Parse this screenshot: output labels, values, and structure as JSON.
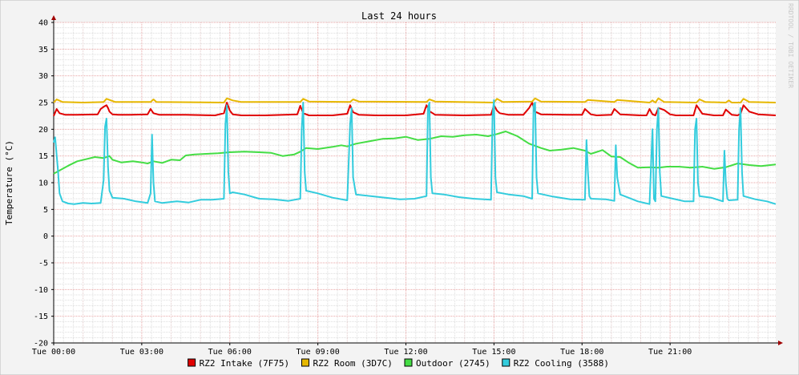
{
  "chart_data": {
    "type": "line",
    "title": "Last 24 hours",
    "ylabel": "Temperature (°C)",
    "watermark": "RRDTOOL / TOBI OETIKER",
    "xlim": [
      0,
      24.6
    ],
    "ylim": [
      -20,
      40
    ],
    "y_ticks": [
      -20,
      -15,
      -10,
      -5,
      0,
      5,
      10,
      15,
      20,
      25,
      30,
      35,
      40
    ],
    "x_ticks": [
      {
        "value": 0,
        "label": "Tue 00:00"
      },
      {
        "value": 3,
        "label": "Tue 03:00"
      },
      {
        "value": 6,
        "label": "Tue 06:00"
      },
      {
        "value": 9,
        "label": "Tue 09:00"
      },
      {
        "value": 12,
        "label": "Tue 12:00"
      },
      {
        "value": 15,
        "label": "Tue 15:00"
      },
      {
        "value": 18,
        "label": "Tue 18:00"
      },
      {
        "value": 21,
        "label": "Tue 21:00"
      }
    ],
    "grid": true,
    "legend_position": "bottom",
    "series": [
      {
        "name": "RZ2 Intake (7F75)",
        "color": "#e00000",
        "x": [
          0,
          0.1,
          0.2,
          0.4,
          0.8,
          1.5,
          1.6,
          1.7,
          1.8,
          1.85,
          1.9,
          2.0,
          2.2,
          2.6,
          3.2,
          3.3,
          3.4,
          3.6,
          4.5,
          5.5,
          5.8,
          5.9,
          6.0,
          6.1,
          6.4,
          7.2,
          8.3,
          8.4,
          8.5,
          8.7,
          9.5,
          10.0,
          10.1,
          10.2,
          10.4,
          11.0,
          12.0,
          12.6,
          12.7,
          12.8,
          13.0,
          14.0,
          14.9,
          15.0,
          15.1,
          15.2,
          15.5,
          16.0,
          16.2,
          16.3,
          16.4,
          16.6,
          17.5,
          18.0,
          18.1,
          18.3,
          18.5,
          19.0,
          19.1,
          19.3,
          20.0,
          20.2,
          20.3,
          20.4,
          20.5,
          20.6,
          20.8,
          21.0,
          21.2,
          21.6,
          21.8,
          21.9,
          22.1,
          22.5,
          22.8,
          22.9,
          23.1,
          23.3,
          23.4,
          23.5,
          23.7,
          24.0,
          24.6
        ],
        "y": [
          22.5,
          23.8,
          23.0,
          22.7,
          22.7,
          22.8,
          23.8,
          24.2,
          24.5,
          24.0,
          23.3,
          22.8,
          22.7,
          22.7,
          22.8,
          23.8,
          23.0,
          22.7,
          22.7,
          22.6,
          23.0,
          25.0,
          23.5,
          22.8,
          22.6,
          22.6,
          22.8,
          24.4,
          23.0,
          22.6,
          22.6,
          22.9,
          24.5,
          23.2,
          22.7,
          22.6,
          22.6,
          22.9,
          24.5,
          23.4,
          22.7,
          22.6,
          22.7,
          24.5,
          23.5,
          23.0,
          22.7,
          22.7,
          24.0,
          25.0,
          23.3,
          22.8,
          22.7,
          22.7,
          23.8,
          22.8,
          22.6,
          22.7,
          23.8,
          22.8,
          22.6,
          22.6,
          23.8,
          22.8,
          22.6,
          24.0,
          23.6,
          22.8,
          22.6,
          22.6,
          22.6,
          24.5,
          22.9,
          22.6,
          22.6,
          23.7,
          22.7,
          22.6,
          22.9,
          24.5,
          23.3,
          22.8,
          22.6
        ]
      },
      {
        "name": "RZ2 Room (3D7C)",
        "color": "#e6b800",
        "x": [
          0,
          0.1,
          0.3,
          1.0,
          1.7,
          1.8,
          1.9,
          2.1,
          3.3,
          3.4,
          3.5,
          5.8,
          5.9,
          6.1,
          6.4,
          8.4,
          8.5,
          8.7,
          10.1,
          10.2,
          10.4,
          12.7,
          12.8,
          13.0,
          15.0,
          15.1,
          15.3,
          16.3,
          16.4,
          16.6,
          18.1,
          18.2,
          19.1,
          19.2,
          20.3,
          20.4,
          20.5,
          20.6,
          20.8,
          21.9,
          22.0,
          22.2,
          22.9,
          23.0,
          23.1,
          23.4,
          23.5,
          23.7,
          24.6
        ],
        "y": [
          25.0,
          25.6,
          25.1,
          25.0,
          25.1,
          25.7,
          25.5,
          25.1,
          25.1,
          25.6,
          25.1,
          25.0,
          25.8,
          25.4,
          25.1,
          25.1,
          25.7,
          25.2,
          25.1,
          25.6,
          25.2,
          25.1,
          25.6,
          25.2,
          25.0,
          25.7,
          25.1,
          25.2,
          25.8,
          25.2,
          25.1,
          25.5,
          25.1,
          25.5,
          25.0,
          25.4,
          25.0,
          25.8,
          25.1,
          25.0,
          25.6,
          25.1,
          25.0,
          25.4,
          25.0,
          25.0,
          25.7,
          25.1,
          25.0
        ]
      },
      {
        "name": "Outdoor (2745)",
        "color": "#44dd44",
        "x": [
          0,
          0.2,
          0.5,
          0.8,
          1.1,
          1.4,
          1.7,
          1.9,
          2.0,
          2.3,
          2.7,
          3.0,
          3.2,
          3.4,
          3.7,
          4.0,
          4.3,
          4.5,
          4.8,
          5.2,
          5.6,
          6.0,
          6.5,
          7.0,
          7.4,
          7.8,
          8.2,
          8.4,
          8.6,
          9.0,
          9.5,
          9.8,
          10.0,
          10.3,
          10.8,
          11.2,
          11.6,
          12.0,
          12.4,
          12.8,
          13.2,
          13.6,
          14.0,
          14.4,
          14.8,
          15.1,
          15.4,
          15.8,
          16.2,
          16.6,
          16.9,
          17.3,
          17.7,
          18.1,
          18.3,
          18.7,
          19.0,
          19.3,
          19.6,
          19.9,
          20.3,
          20.6,
          20.9,
          21.3,
          21.7,
          22.1,
          22.5,
          22.9,
          23.3,
          23.7,
          24.1,
          24.6
        ],
        "y": [
          11.7,
          12.3,
          13.2,
          14.0,
          14.4,
          14.8,
          14.6,
          15.0,
          14.3,
          13.8,
          14.0,
          13.8,
          13.6,
          14.0,
          13.7,
          14.3,
          14.2,
          15.1,
          15.3,
          15.4,
          15.5,
          15.7,
          15.8,
          15.7,
          15.6,
          15.0,
          15.3,
          15.8,
          16.5,
          16.3,
          16.7,
          17.0,
          16.8,
          17.3,
          17.8,
          18.2,
          18.3,
          18.6,
          18.0,
          18.2,
          18.7,
          18.6,
          18.9,
          19.0,
          18.7,
          19.1,
          19.6,
          18.7,
          17.3,
          16.5,
          16.0,
          16.2,
          16.5,
          16.0,
          15.4,
          16.1,
          14.9,
          14.8,
          13.7,
          12.8,
          12.9,
          12.8,
          13.0,
          13.0,
          12.8,
          13.0,
          12.6,
          12.9,
          13.6,
          13.3,
          13.1,
          13.4
        ]
      },
      {
        "name": "RZ2 Cooling (3588)",
        "color": "#33ccdd",
        "x": [
          0,
          0.05,
          0.15,
          0.2,
          0.3,
          0.5,
          0.7,
          1.0,
          1.3,
          1.6,
          1.7,
          1.75,
          1.8,
          1.85,
          1.9,
          2.0,
          2.4,
          2.8,
          3.2,
          3.3,
          3.35,
          3.4,
          3.45,
          3.7,
          4.2,
          4.6,
          5.0,
          5.4,
          5.8,
          5.85,
          5.9,
          5.95,
          6.0,
          6.1,
          6.5,
          7.0,
          7.5,
          8.0,
          8.4,
          8.45,
          8.5,
          8.55,
          8.6,
          9.0,
          9.5,
          10.0,
          10.1,
          10.15,
          10.2,
          10.3,
          10.8,
          11.3,
          11.8,
          12.3,
          12.7,
          12.75,
          12.8,
          12.85,
          12.9,
          13.3,
          13.8,
          14.3,
          14.9,
          14.95,
          15.0,
          15.05,
          15.1,
          15.5,
          16.0,
          16.3,
          16.35,
          16.4,
          16.45,
          16.5,
          17.0,
          17.6,
          18.1,
          18.15,
          18.2,
          18.25,
          18.3,
          18.8,
          19.1,
          19.15,
          19.2,
          19.3,
          19.9,
          20.3,
          20.35,
          20.4,
          20.45,
          20.5,
          20.55,
          20.6,
          20.65,
          20.7,
          21.1,
          21.5,
          21.8,
          21.85,
          21.9,
          21.95,
          22.0,
          22.4,
          22.8,
          22.85,
          22.9,
          22.95,
          23.0,
          23.3,
          23.35,
          23.4,
          23.45,
          23.5,
          23.9,
          24.3,
          24.6
        ],
        "y": [
          17.5,
          18.5,
          12.0,
          8.0,
          6.5,
          6.1,
          6.0,
          6.2,
          6.1,
          6.2,
          10.5,
          20.5,
          22.0,
          13.0,
          8.5,
          7.2,
          7.0,
          6.5,
          6.2,
          8.0,
          19.0,
          10.0,
          6.5,
          6.2,
          6.5,
          6.3,
          6.8,
          6.8,
          7.0,
          21.0,
          24.5,
          12.0,
          8.0,
          8.2,
          7.8,
          7.0,
          6.9,
          6.6,
          7.0,
          20.0,
          25.0,
          12.0,
          8.5,
          8.0,
          7.2,
          6.7,
          21.0,
          24.0,
          11.0,
          7.8,
          7.5,
          7.2,
          6.9,
          7.0,
          7.5,
          24.0,
          25.0,
          11.0,
          8.0,
          7.8,
          7.3,
          7.0,
          6.8,
          22.5,
          25.5,
          11.0,
          8.2,
          7.8,
          7.5,
          7.0,
          24.5,
          25.0,
          11.0,
          8.0,
          7.4,
          6.9,
          6.8,
          18.0,
          12.0,
          7.5,
          7.0,
          6.9,
          6.6,
          17.0,
          11.0,
          7.8,
          6.5,
          6.0,
          13.0,
          20.0,
          7.0,
          6.5,
          20.0,
          24.0,
          12.0,
          7.5,
          7.0,
          6.5,
          6.5,
          20.0,
          22.0,
          10.0,
          7.5,
          7.2,
          6.5,
          16.0,
          10.0,
          7.0,
          6.7,
          6.8,
          20.0,
          24.0,
          12.0,
          7.5,
          6.9,
          6.5,
          6.0
        ]
      }
    ]
  }
}
